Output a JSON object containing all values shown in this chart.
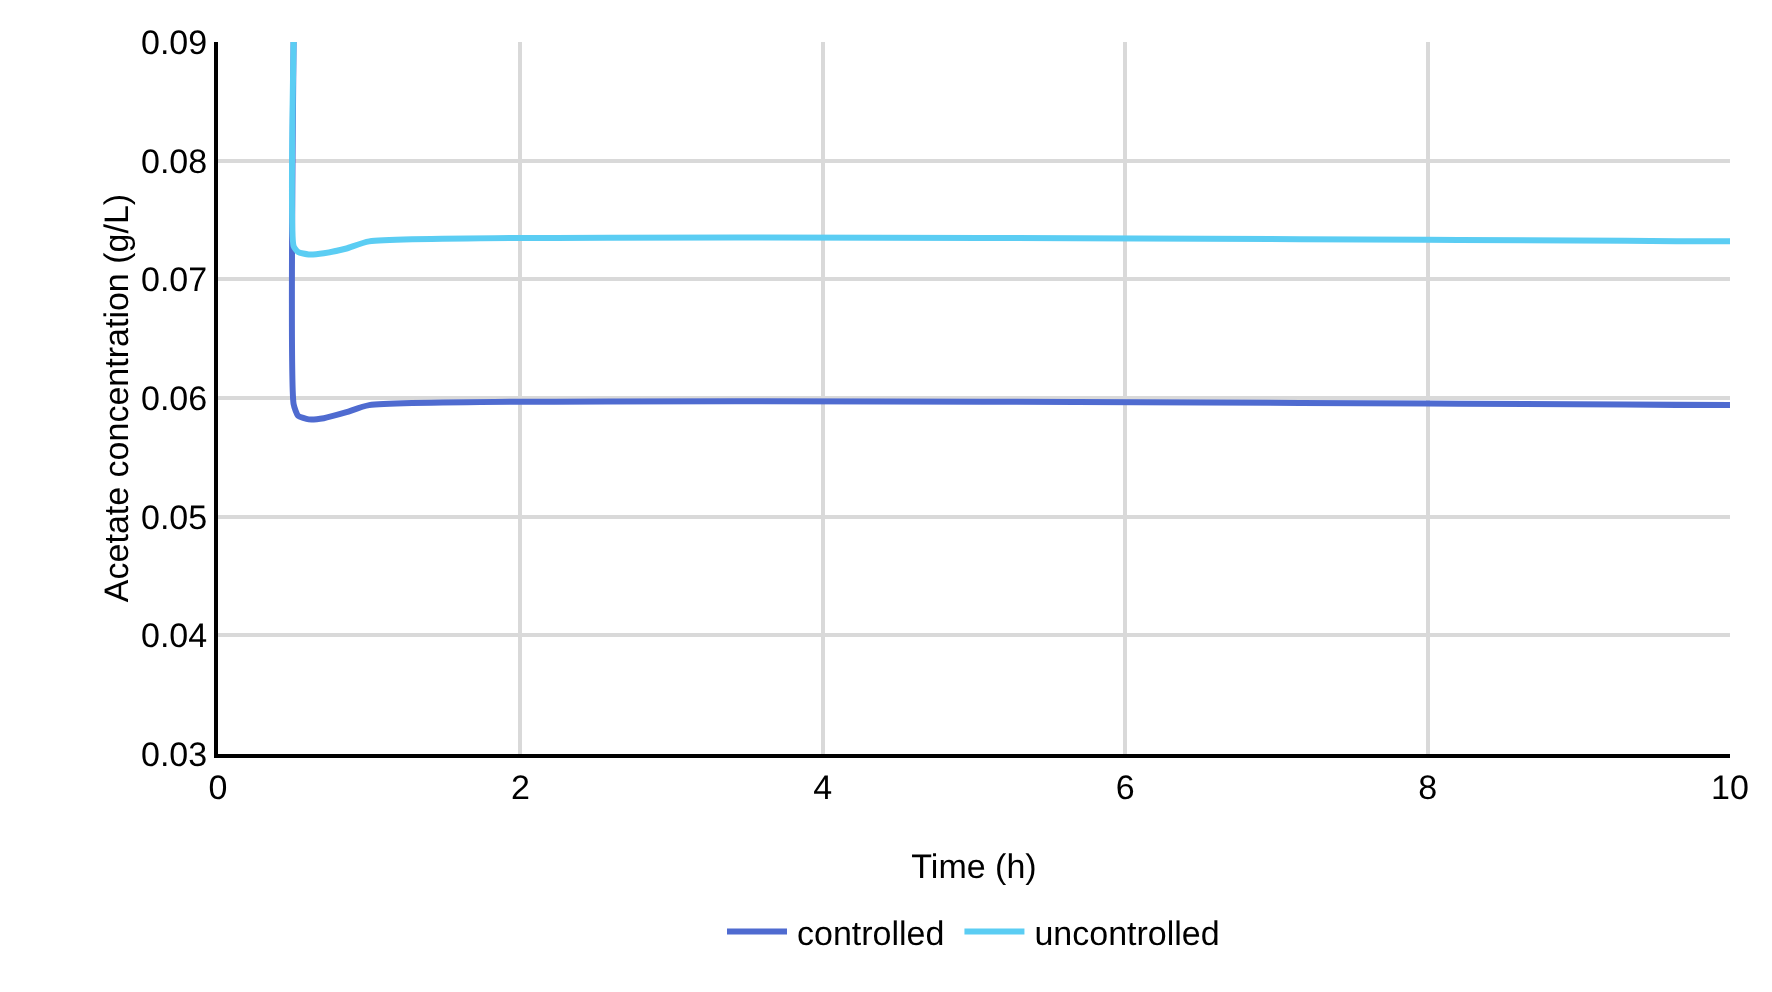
{
  "chart_data": {
    "type": "line",
    "xlabel": "Time (h)",
    "ylabel": "Acetate concentration (g/L)",
    "xlim": [
      0,
      10
    ],
    "xticks": [
      0,
      2,
      4,
      6,
      8,
      10
    ],
    "ylim": [
      0.03,
      0.09
    ],
    "yticks": [
      0.03,
      0.04,
      0.05,
      0.06,
      0.07,
      0.08,
      0.09
    ],
    "grid": true,
    "legend": "bottom",
    "line_style": "solid",
    "series": [
      {
        "name": "controlled",
        "color": "#4f6bd0",
        "x": [
          0.5,
          0.5,
          0.53,
          0.6,
          0.7,
          0.85,
          1.0,
          10
        ],
        "values": [
          0.09,
          0.0595,
          0.0585,
          0.0582,
          0.0583,
          0.0588,
          0.0594,
          0.0594
        ]
      },
      {
        "name": "uncontrolled",
        "color": "#5bcdf3",
        "x": [
          0.5,
          0.5,
          0.53,
          0.6,
          0.7,
          0.85,
          1.0,
          10
        ],
        "values": [
          0.09,
          0.0728,
          0.0723,
          0.0721,
          0.0722,
          0.0726,
          0.0732,
          0.0732
        ]
      }
    ]
  }
}
